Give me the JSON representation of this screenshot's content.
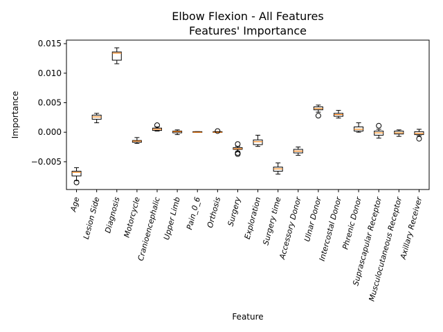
{
  "chart_data": {
    "type": "box",
    "title_lines": [
      "Elbow Flexion - All Features",
      "Features' Importance"
    ],
    "xlabel": "Feature",
    "ylabel": "Importance",
    "ylim": [
      -0.0097,
      0.0156
    ],
    "yticks": [
      -0.005,
      0.0,
      0.005,
      0.01,
      0.015
    ],
    "ytick_labels": [
      "−0.005",
      "0.000",
      "0.005",
      "0.010",
      "0.015"
    ],
    "box_fill": "#ffffff",
    "median_color": "#ff7f0e",
    "categories": [
      {
        "name": "Age",
        "whisker_low": -0.0082,
        "q1": -0.0074,
        "median": -0.0068,
        "q3": -0.0066,
        "whisker_high": -0.006,
        "outliers": [
          -0.0085
        ]
      },
      {
        "name": "Lesion Side",
        "whisker_low": 0.0016,
        "q1": 0.0022,
        "median": 0.0026,
        "q3": 0.0029,
        "whisker_high": 0.0032,
        "outliers": []
      },
      {
        "name": "Diagnosis",
        "whisker_low": 0.0116,
        "q1": 0.0122,
        "median": 0.0134,
        "q3": 0.0136,
        "whisker_high": 0.0143,
        "outliers": []
      },
      {
        "name": "Motorcycle",
        "whisker_low": -0.0019,
        "q1": -0.0017,
        "median": -0.0015,
        "q3": -0.0014,
        "whisker_high": -0.0009,
        "outliers": []
      },
      {
        "name": "Cranioencephalic",
        "whisker_low": 0.0002,
        "q1": 0.0003,
        "median": 0.0005,
        "q3": 0.0007,
        "whisker_high": 0.0009,
        "outliers": [
          0.0012
        ]
      },
      {
        "name": "Upper Limb",
        "whisker_low": -0.0004,
        "q1": -0.0001,
        "median": 0.0001,
        "q3": 0.0002,
        "whisker_high": 0.0004,
        "outliers": []
      },
      {
        "name": "Pain_0_6",
        "whisker_low": 0.0,
        "q1": 0.0,
        "median": 0.0,
        "q3": 0.0001,
        "whisker_high": 0.0001,
        "outliers": []
      },
      {
        "name": "Orthosis",
        "whisker_low": 0.0,
        "q1": 0.0,
        "median": 0.0,
        "q3": 0.0001,
        "whisker_high": 0.0001,
        "outliers": [
          0.0002
        ]
      },
      {
        "name": "Surgery",
        "whisker_low": -0.0033,
        "q1": -0.0029,
        "median": -0.0028,
        "q3": -0.0026,
        "whisker_high": -0.0024,
        "outliers": [
          -0.0035,
          -0.0037,
          -0.002
        ]
      },
      {
        "name": "Exploration",
        "whisker_low": -0.0024,
        "q1": -0.0021,
        "median": -0.0016,
        "q3": -0.0013,
        "whisker_high": -0.0005,
        "outliers": []
      },
      {
        "name": "Surgery time",
        "whisker_low": -0.0071,
        "q1": -0.0066,
        "median": -0.0062,
        "q3": -0.0059,
        "whisker_high": -0.0052,
        "outliers": []
      },
      {
        "name": "Accessory Donor",
        "whisker_low": -0.0039,
        "q1": -0.0035,
        "median": -0.0032,
        "q3": -0.0029,
        "whisker_high": -0.0025,
        "outliers": []
      },
      {
        "name": "Ulnar Donor",
        "whisker_low": 0.0034,
        "q1": 0.0038,
        "median": 0.004,
        "q3": 0.0043,
        "whisker_high": 0.0046,
        "outliers": [
          0.0028
        ]
      },
      {
        "name": "Intercostal Donor",
        "whisker_low": 0.0024,
        "q1": 0.0027,
        "median": 0.003,
        "q3": 0.0032,
        "whisker_high": 0.0037,
        "outliers": []
      },
      {
        "name": "Phrenic Donor",
        "whisker_low": 0.0,
        "q1": 0.0002,
        "median": 0.0005,
        "q3": 0.0009,
        "whisker_high": 0.0016,
        "outliers": []
      },
      {
        "name": "Suprascapular Receptor",
        "whisker_low": -0.001,
        "q1": -0.0005,
        "median": -0.0001,
        "q3": 0.0002,
        "whisker_high": 0.0005,
        "outliers": [
          0.0011
        ]
      },
      {
        "name": "Musculocutaneous Receptor",
        "whisker_low": -0.0007,
        "q1": -0.0003,
        "median": -0.0001,
        "q3": 0.0002,
        "whisker_high": 0.0004,
        "outliers": []
      },
      {
        "name": "Axillary Receiver",
        "whisker_low": -0.0006,
        "q1": -0.0004,
        "median": -0.0002,
        "q3": 0.0001,
        "whisker_high": 0.0005,
        "outliers": [
          -0.0011
        ]
      }
    ]
  }
}
